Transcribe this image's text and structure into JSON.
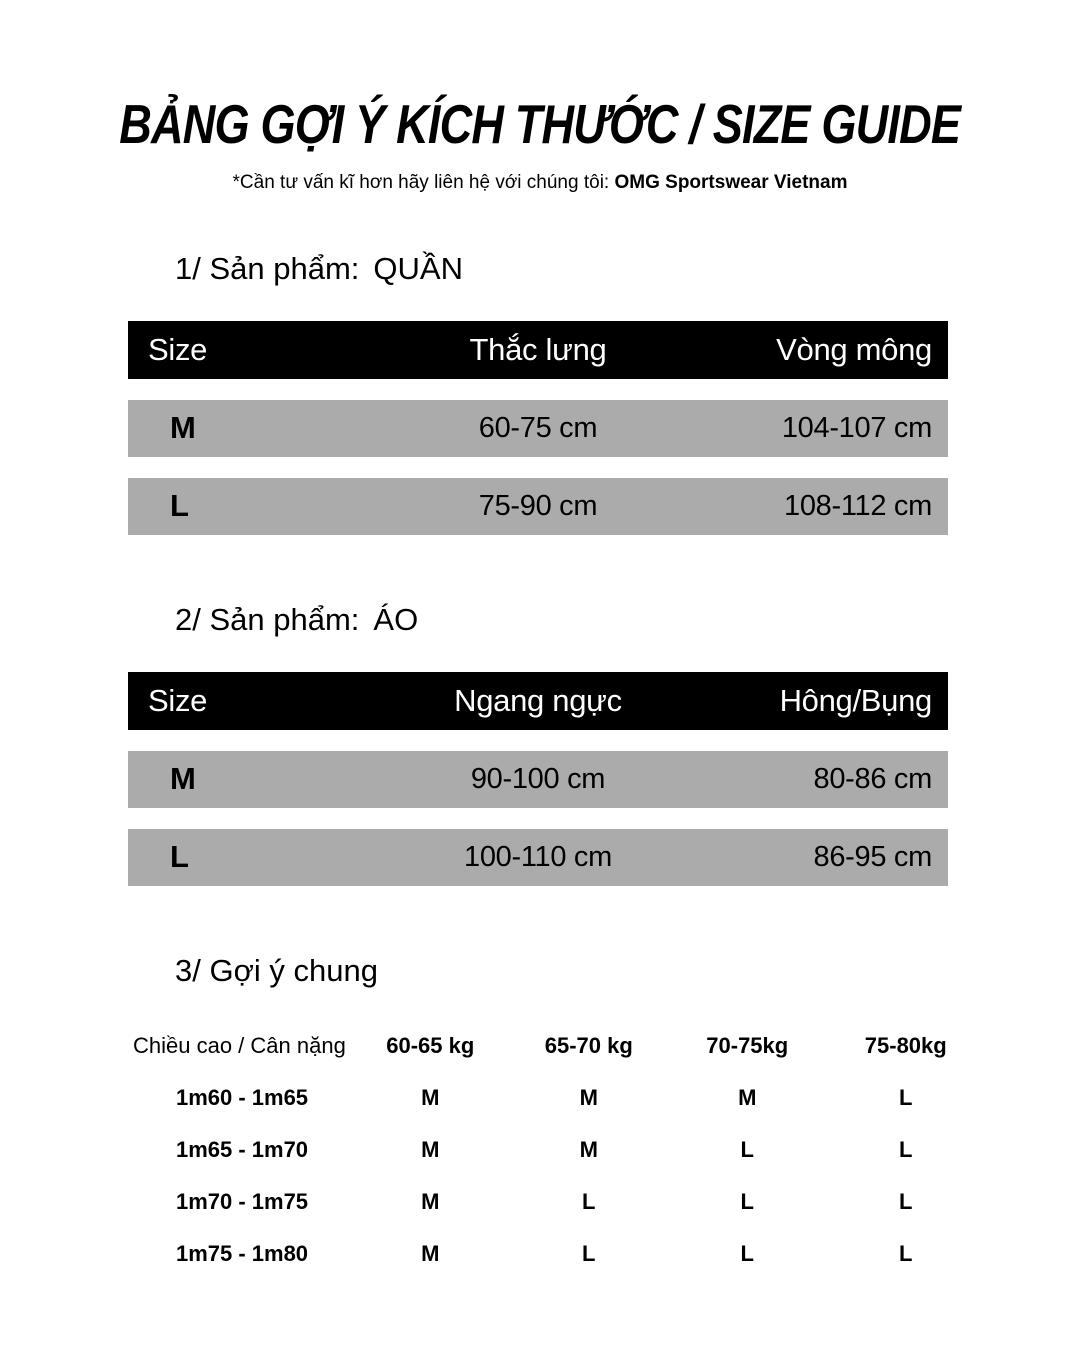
{
  "page": {
    "title": "BẢNG GỢI Ý KÍCH THƯỚC / SIZE GUIDE",
    "subtitle_prefix": "*Cần tư vấn kĩ hơn hãy liên hệ với chúng tôi: ",
    "subtitle_brand": "OMG Sportswear Vietnam"
  },
  "colors": {
    "table_header_bg": "#000000",
    "table_header_text": "#ffffff",
    "table_row_bg": "#ababab",
    "text": "#000000",
    "page_bg": "#ffffff"
  },
  "sections": [
    {
      "heading_label": "1/ Sản phẩm:",
      "heading_product": "QUẦN",
      "columns": [
        "Size",
        "Thắc lưng",
        "Vòng mông"
      ],
      "rows": [
        {
          "size": "M",
          "col2": "60-75 cm",
          "col3": "104-107 cm"
        },
        {
          "size": "L",
          "col2": "75-90 cm",
          "col3": "108-112 cm"
        }
      ]
    },
    {
      "heading_label": "2/ Sản phẩm:",
      "heading_product": "ÁO",
      "columns": [
        "Size",
        "Ngang ngực",
        "Hông/Bụng"
      ],
      "rows": [
        {
          "size": "M",
          "col2": "90-100 cm",
          "col3": "80-86 cm"
        },
        {
          "size": "L",
          "col2": "100-110 cm",
          "col3": "86-95 cm"
        }
      ]
    }
  ],
  "general": {
    "heading": "3/ Gợi ý chung",
    "columns": [
      "Chiều cao / Cân nặng",
      "60-65 kg",
      "65-70 kg",
      "70-75kg",
      "75-80kg"
    ],
    "rows": [
      {
        "label": "1m60 - 1m65",
        "values": [
          "M",
          "M",
          "M",
          "L"
        ]
      },
      {
        "label": "1m65 - 1m70",
        "values": [
          "M",
          "M",
          "L",
          "L"
        ]
      },
      {
        "label": "1m70 - 1m75",
        "values": [
          "M",
          "L",
          "L",
          "L"
        ]
      },
      {
        "label": "1m75 - 1m80",
        "values": [
          "M",
          "L",
          "L",
          "L"
        ]
      }
    ]
  }
}
